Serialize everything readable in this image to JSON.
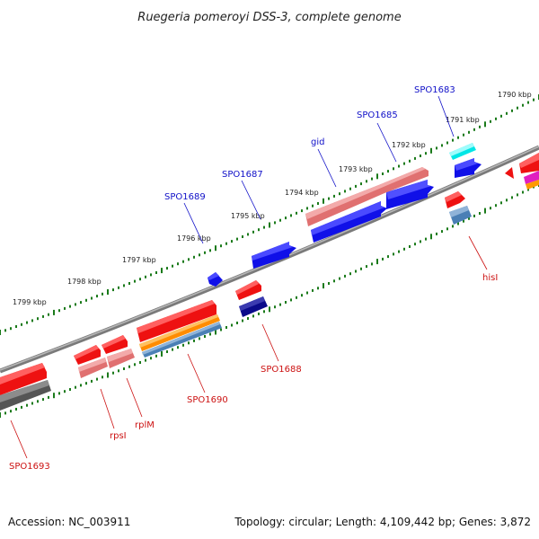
{
  "title": "Ruegeria pomeroyi DSS-3, complete genome",
  "footer": {
    "accession": "Accession: NC_003911",
    "topology": "Topology: circular; Length: 4,109,442 bp; Genes: 3,872"
  },
  "scale_labels": [
    "1790 kbp",
    "1791 kbp",
    "1792 kbp",
    "1793 kbp",
    "1794 kbp",
    "1795 kbp",
    "1796 kbp",
    "1797 kbp",
    "1798 kbp",
    "1799 kbp"
  ],
  "colors": {
    "forward_label": "#1010c8",
    "reverse_label": "#cc1111",
    "backbone": "#888888",
    "tick": "#1a7a1a"
  },
  "genes_forward": [
    {
      "name": "SPO1683"
    },
    {
      "name": "SPO1685"
    },
    {
      "name": "gid"
    },
    {
      "name": "SPO1687"
    },
    {
      "name": "SPO1689"
    }
  ],
  "genes_reverse": [
    {
      "name": "hisI"
    },
    {
      "name": "SPO1688"
    },
    {
      "name": "SPO1690"
    },
    {
      "name": "rplM"
    },
    {
      "name": "rpsI"
    },
    {
      "name": "SPO1693"
    }
  ]
}
